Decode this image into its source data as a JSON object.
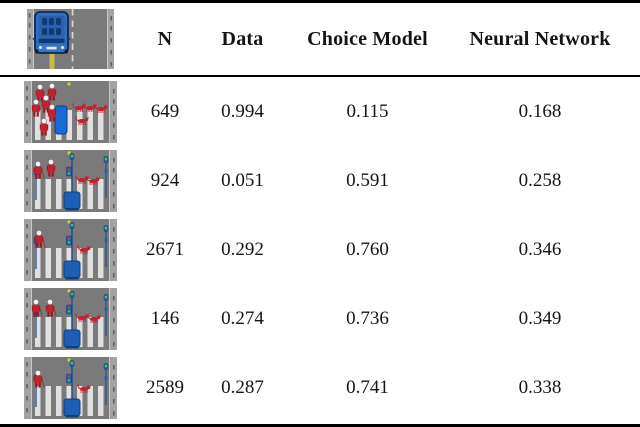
{
  "colors": {
    "road": "#7a7a7a",
    "curb": "#a2a2a2",
    "curb_mark": "#5f5f5f",
    "gutter": "#c9c9c9",
    "stripe": "#e0e0e0",
    "figure_red": "#c22130",
    "figure_red_dark": "#a5121f",
    "head_white": "#f1f1f1",
    "pole_blue": "#1d4f8f",
    "box_blue": "#2a5fa8",
    "base_blue": "#1c5fb4",
    "base_blue_dark": "#113f7e",
    "barrier_blue": "#176bd4",
    "light_green": "#3fd14a",
    "light_red": "#e23434",
    "accent_yellow": "#d6c433",
    "car_blue": "#2f6ec6",
    "car_dark": "#123a6e",
    "car_outline": "#10294d",
    "lane_yellow": "#c9b94d",
    "rule": "#000000"
  },
  "table": {
    "columns": [
      {
        "key": "n",
        "label": "N"
      },
      {
        "key": "data",
        "label": "Data"
      },
      {
        "key": "choice_model",
        "label": "Choice Model"
      },
      {
        "key": "neural_network",
        "label": "Neural Network"
      }
    ],
    "header_scene": {
      "kind": "approach",
      "description": "top view of blue autonomous car with passengers driving on two-lane road",
      "occupants": 6
    },
    "rows": [
      {
        "values": {
          "n": "649",
          "data": "0.994",
          "choice_model": "0.115",
          "neural_network": "0.168"
        },
        "scene": {
          "kind": "crossing",
          "description": "group of pedestrians on left of crosswalk, four cats on right, blue barrier in road, no traffic signal",
          "signal": false,
          "barrier": true,
          "people": [
            {
              "x": 16,
              "y": 6,
              "elderly": false
            },
            {
              "x": 28,
              "y": 5,
              "elderly": false
            },
            {
              "x": 22,
              "y": 17,
              "elderly": false
            },
            {
              "x": 12,
              "y": 21,
              "elderly": false
            },
            {
              "x": 28,
              "y": 26,
              "elderly": false
            },
            {
              "x": 20,
              "y": 40,
              "elderly": false
            }
          ],
          "animals": [
            {
              "x": 55,
              "y": 27
            },
            {
              "x": 66,
              "y": 27
            },
            {
              "x": 77,
              "y": 28
            },
            {
              "x": 58,
              "y": 40
            }
          ]
        }
      },
      {
        "values": {
          "n": "924",
          "data": "0.051",
          "choice_model": "0.591",
          "neural_network": "0.258"
        },
        "scene": {
          "kind": "crossing",
          "description": "two women (one elderly with cane) on left, dog and cat crossing on right, signalized crosswalk",
          "signal": true,
          "barrier": false,
          "people": [
            {
              "x": 14,
              "y": 14,
              "elderly": true
            },
            {
              "x": 27,
              "y": 12,
              "elderly": false
            }
          ],
          "animals": [
            {
              "x": 58,
              "y": 30
            },
            {
              "x": 69,
              "y": 31
            }
          ]
        }
      },
      {
        "values": {
          "n": "2671",
          "data": "0.292",
          "choice_model": "0.760",
          "neural_network": "0.346"
        },
        "scene": {
          "kind": "crossing",
          "description": "one elderly pedestrian with cane on left, one cat crossing on right, signalized crosswalk",
          "signal": true,
          "barrier": false,
          "people": [
            {
              "x": 15,
              "y": 14,
              "elderly": true
            }
          ],
          "animals": [
            {
              "x": 60,
              "y": 31
            }
          ]
        }
      },
      {
        "values": {
          "n": "146",
          "data": "0.274",
          "choice_model": "0.736",
          "neural_network": "0.349"
        },
        "scene": {
          "kind": "crossing",
          "description": "two elderly pedestrians with canes on left, two dogs crossing on right, signalized crosswalk",
          "signal": true,
          "barrier": false,
          "people": [
            {
              "x": 12,
              "y": 14,
              "elderly": true
            },
            {
              "x": 26,
              "y": 14,
              "elderly": true
            }
          ],
          "animals": [
            {
              "x": 58,
              "y": 30
            },
            {
              "x": 70,
              "y": 31
            }
          ]
        }
      },
      {
        "values": {
          "n": "2589",
          "data": "0.287",
          "choice_model": "0.741",
          "neural_network": "0.338"
        },
        "scene": {
          "kind": "crossing",
          "description": "one elderly woman with cane on left, one cat crossing on right, signalized crosswalk",
          "signal": true,
          "barrier": false,
          "people": [
            {
              "x": 14,
              "y": 16,
              "elderly": true
            }
          ],
          "animals": [
            {
              "x": 60,
              "y": 32
            }
          ]
        }
      }
    ]
  },
  "chart_data": {
    "type": "table",
    "columns": [
      "N",
      "Data",
      "Choice Model",
      "Neural Network"
    ],
    "rows": [
      [
        649,
        0.994,
        0.115,
        0.168
      ],
      [
        924,
        0.051,
        0.591,
        0.258
      ],
      [
        2671,
        0.292,
        0.76,
        0.346
      ],
      [
        146,
        0.274,
        0.736,
        0.349
      ],
      [
        2589,
        0.287,
        0.741,
        0.338
      ]
    ]
  }
}
